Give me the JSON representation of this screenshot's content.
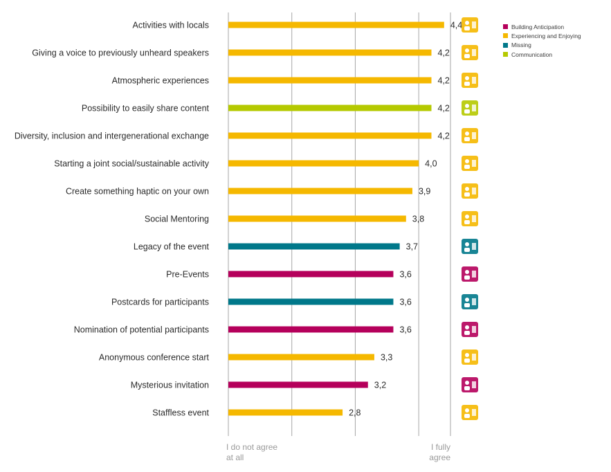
{
  "chart_data": {
    "type": "bar",
    "orientation": "horizontal",
    "title": "",
    "xlim": [
      1,
      4.5
    ],
    "grid_x": [
      1,
      2,
      3,
      4
    ],
    "axis_labels": {
      "left": [
        "I do not agree",
        "at all"
      ],
      "right": [
        "I fully",
        "agree"
      ]
    },
    "bars": [
      {
        "category": "Activities with locals",
        "value": 4.4,
        "value_label": "4,4",
        "group": "Experiencing and Enjoying",
        "icon": "people-gathering-icon"
      },
      {
        "category": "Giving a voice to previously unheard speakers",
        "value": 4.2,
        "value_label": "4,2",
        "group": "Experiencing and Enjoying",
        "icon": "speaker-icon"
      },
      {
        "category": "Atmospheric experiences",
        "value": 4.2,
        "value_label": "4,2",
        "group": "Experiencing and Enjoying",
        "icon": "sunrise-book-icon"
      },
      {
        "category": "Possibility to easily share content",
        "value": 4.2,
        "value_label": "4,2",
        "group": "Communication",
        "icon": "share-icon"
      },
      {
        "category": "Diversity, inclusion and intergenerational exchange",
        "value": 4.2,
        "value_label": "4,2",
        "group": "Experiencing and Enjoying",
        "icon": "group-check-icon"
      },
      {
        "category": "Starting a joint social/sustainable activity",
        "value": 4.0,
        "value_label": "4,0",
        "group": "Experiencing and Enjoying",
        "icon": "gears-icon"
      },
      {
        "category": "Create something haptic on your own",
        "value": 3.9,
        "value_label": "3,9",
        "group": "Experiencing and Enjoying",
        "icon": "idea-person-icon"
      },
      {
        "category": "Social Mentoring",
        "value": 3.8,
        "value_label": "3,8",
        "group": "Experiencing and Enjoying",
        "icon": "mentor-stairs-icon"
      },
      {
        "category": "Legacy of the event",
        "value": 3.7,
        "value_label": "3,7",
        "group": "Missing",
        "icon": "tree-icon"
      },
      {
        "category": "Pre-Events",
        "value": 3.6,
        "value_label": "3,6",
        "group": "Building Anticipation",
        "icon": "presentation-icon"
      },
      {
        "category": "Postcards for participants",
        "value": 3.6,
        "value_label": "3,6",
        "group": "Missing",
        "icon": "postcard-icon"
      },
      {
        "category": "Nomination of potential participants",
        "value": 3.6,
        "value_label": "3,6",
        "group": "Building Anticipation",
        "icon": "people-search-icon"
      },
      {
        "category": "Anonymous conference start",
        "value": 3.3,
        "value_label": "3,3",
        "group": "Experiencing and Enjoying",
        "icon": "anonymous-laptop-icon"
      },
      {
        "category": "Mysterious invitation",
        "value": 3.2,
        "value_label": "3,2",
        "group": "Building Anticipation",
        "icon": "envelope-question-icon"
      },
      {
        "category": "Staffless event",
        "value": 2.8,
        "value_label": "2,8",
        "group": "Experiencing and Enjoying",
        "icon": "food-service-icon"
      }
    ],
    "legend": [
      {
        "label": "Building Anticipation",
        "color": "#b5005b"
      },
      {
        "label": "Experiencing and Enjoying",
        "color": "#f5b800"
      },
      {
        "label": "Missing",
        "color": "#00788a"
      },
      {
        "label": "Communication",
        "color": "#b5c900"
      }
    ]
  }
}
